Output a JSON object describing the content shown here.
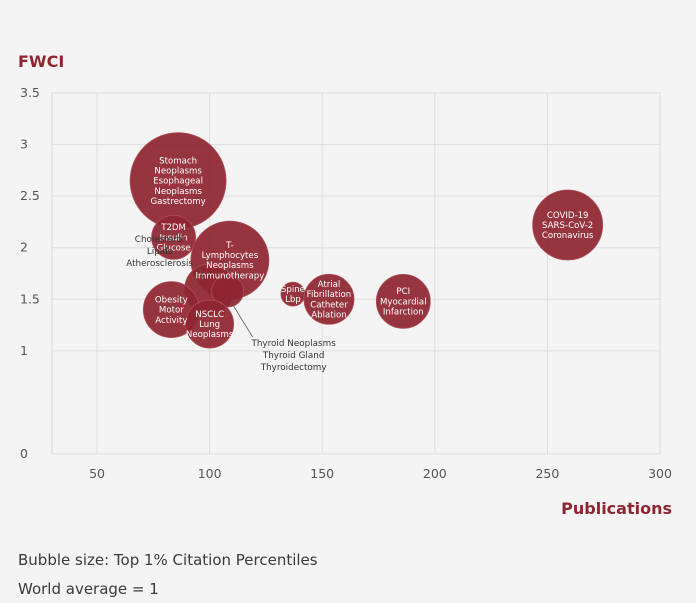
{
  "chart_data": {
    "type": "scatter",
    "title": "",
    "ylabel": "FWCI",
    "xlabel": "Publications",
    "xlim": [
      30,
      300
    ],
    "ylim": [
      0,
      3.5
    ],
    "x_ticks": [
      "50",
      "100",
      "150",
      "200",
      "250",
      "300"
    ],
    "y_ticks": [
      "0",
      "1",
      "1.5",
      "2",
      "2.5",
      "3",
      "3.5"
    ],
    "grid": true,
    "bubble_color": "#8e2630",
    "series": [
      {
        "x": 86,
        "y": 2.65,
        "size": 48,
        "lines": [
          "Stomach",
          "Neoplasms",
          "Esophageal",
          "Neoplasms",
          "Gastrectomy"
        ],
        "label_position": "inside"
      },
      {
        "x": 259,
        "y": 2.22,
        "size": 35,
        "lines": [
          "COVID-19",
          "SARS-CoV-2",
          "Coronavirus"
        ],
        "label_position": "inside"
      },
      {
        "x": 84,
        "y": 2.1,
        "size": 22,
        "lines": [
          "T2DM",
          "Insulin",
          "Glucose"
        ],
        "label_position": "inside"
      },
      {
        "x": 109,
        "y": 1.88,
        "size": 39,
        "lines": [
          "T-",
          "Lymphocytes",
          "Neoplasms",
          "Immunotherapy"
        ],
        "label_position": "inside"
      },
      {
        "x": 100,
        "y": 1.6,
        "size": 25,
        "lines": [
          "Cholesterol",
          "Lipids",
          "Atherosclerosis"
        ],
        "label_position": "left"
      },
      {
        "x": 108,
        "y": 1.58,
        "size": 16,
        "lines": [
          "Thyroid Neoplasms",
          "Thyroid Gland",
          "Thyroidectomy"
        ],
        "label_position": "below"
      },
      {
        "x": 137,
        "y": 1.55,
        "size": 12,
        "lines": [
          "Spine",
          "Lbp"
        ],
        "label_position": "inside"
      },
      {
        "x": 153,
        "y": 1.5,
        "size": 25,
        "lines": [
          "Atrial",
          "Fibrillation",
          "Catheter",
          "Ablation"
        ],
        "label_position": "inside"
      },
      {
        "x": 186,
        "y": 1.48,
        "size": 27,
        "lines": [
          "PCI",
          "Myocardial",
          "Infarction"
        ],
        "label_position": "inside"
      },
      {
        "x": 83,
        "y": 1.4,
        "size": 28,
        "lines": [
          "Obesity",
          "Motor",
          "Activity"
        ],
        "label_position": "inside"
      },
      {
        "x": 100,
        "y": 1.26,
        "size": 24,
        "lines": [
          "NSCLC",
          "Lung",
          "Neoplasms"
        ],
        "label_position": "inside"
      }
    ]
  },
  "notes": {
    "bubble_size": "Bubble size: Top 1% Citation Percentiles",
    "world_average": "World average = 1"
  }
}
